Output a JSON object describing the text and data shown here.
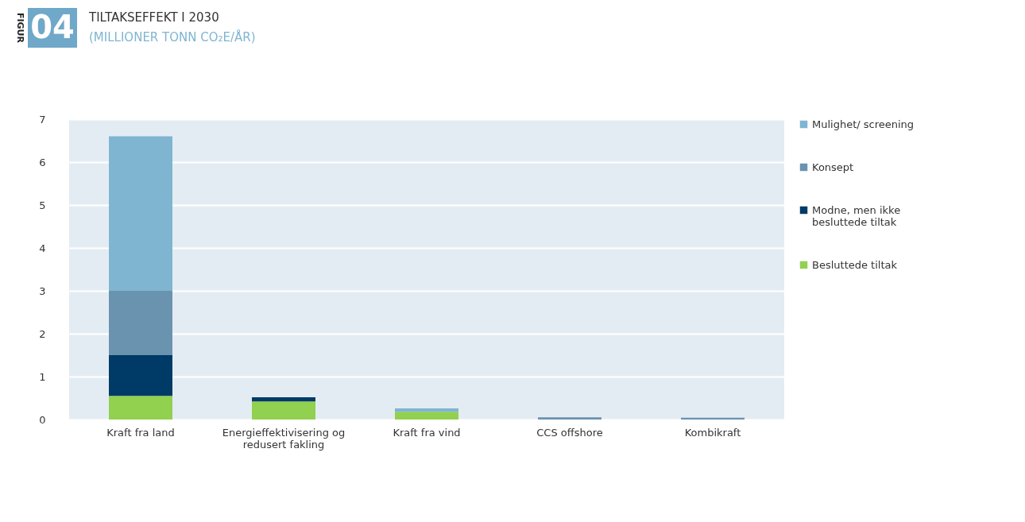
{
  "chart_data": {
    "type": "bar",
    "title": "TILTAKSEFFEKT I 2030",
    "subtitle": "(MILLIONER TONN CO₂E/ÅR)",
    "annotations": [
      "FIGUR",
      "04"
    ],
    "categories": [
      "Kraft fra land",
      "Energieffektivisering og redusert fakling",
      "Kraft fra vind",
      "CCS offshore",
      "Kombikraft"
    ],
    "stacked": true,
    "series": [
      {
        "name": "Besluttede tiltak",
        "color": "#92d050",
        "values": [
          0.55,
          0.42,
          0.18,
          null,
          null
        ]
      },
      {
        "name": "Modne, men ikke besluttede tiltak",
        "color": "#003a66",
        "values": [
          0.95,
          0.1,
          null,
          null,
          null
        ]
      },
      {
        "name": "Konsept",
        "color": "#6a93b0",
        "values": [
          1.5,
          null,
          null,
          0.05,
          0.04
        ]
      },
      {
        "name": "Mulighet/ screening",
        "color": "#7fb5d1",
        "values": [
          3.6,
          null,
          0.08,
          null,
          null
        ]
      }
    ],
    "ylim": [
      0,
      7
    ],
    "yticks": [
      0,
      1,
      2,
      3,
      4,
      5,
      6,
      7
    ],
    "grid": "y",
    "legend": "right"
  }
}
